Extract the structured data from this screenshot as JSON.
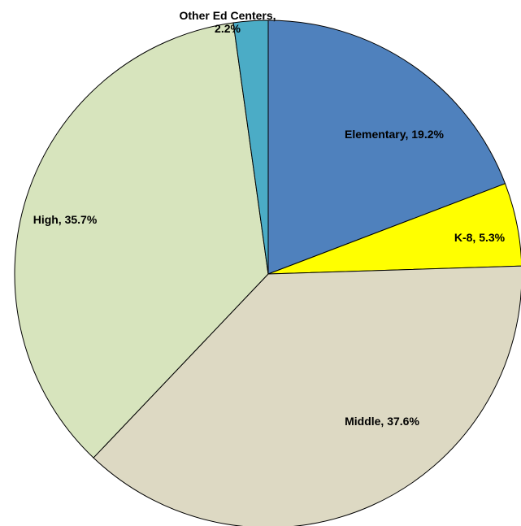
{
  "chart_data": {
    "type": "pie",
    "values": [
      19.2,
      5.3,
      37.6,
      35.7,
      2.2
    ],
    "value_labels": [
      "Elementary, 19.2%",
      "K-8, 5.3%",
      "Middle, 37.6%",
      "High, 35.7%",
      "Other Ed Centers, 2.2%"
    ],
    "colors": [
      "#4f81bd",
      "#ffff00",
      "#ddd9c3",
      "#d7e4bd",
      "#4bacc6"
    ]
  }
}
